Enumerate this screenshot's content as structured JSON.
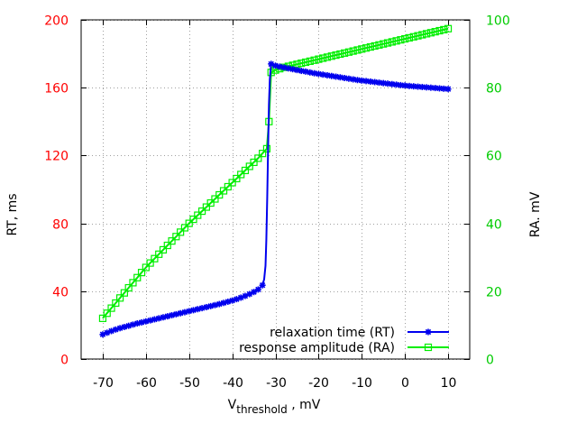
{
  "chart_data": {
    "type": "line",
    "xlabel_main": "V",
    "xlabel_sub": "threshold",
    "xlabel_tail": " , mV",
    "ylabel_left": "RT, ms",
    "ylabel_right": "RA. mV",
    "xlim": [
      -75,
      15
    ],
    "ylim_left": [
      0,
      200
    ],
    "ylim_right": [
      0,
      100
    ],
    "x_ticks": [
      -70,
      -60,
      -50,
      -40,
      -30,
      -20,
      -10,
      0,
      10
    ],
    "y_ticks_left": [
      0,
      40,
      80,
      120,
      160,
      200
    ],
    "y_ticks_right": [
      0,
      20,
      40,
      60,
      80,
      100
    ],
    "grid": true,
    "legend_position": "bottom-right",
    "colors": {
      "left_axis": "#ff0000",
      "right_axis": "#00cc00",
      "rt_line": "#0000ee",
      "ra_line": "#00ee00"
    },
    "series": [
      {
        "name": "relaxation time (RT)",
        "axis": "left",
        "marker": "star",
        "points": [
          [
            -70,
            14.5
          ],
          [
            -69,
            15.5
          ],
          [
            -68,
            16.5
          ],
          [
            -67,
            17.4
          ],
          [
            -66,
            18.2
          ],
          [
            -65,
            18.9
          ],
          [
            -64,
            19.6
          ],
          [
            -63,
            20.3
          ],
          [
            -62,
            21
          ],
          [
            -61,
            21.6
          ],
          [
            -60,
            22.2
          ],
          [
            -59,
            22.8
          ],
          [
            -58,
            23.4
          ],
          [
            -57,
            24
          ],
          [
            -56,
            24.6
          ],
          [
            -55,
            25.2
          ],
          [
            -54,
            25.8
          ],
          [
            -53,
            26.4
          ],
          [
            -52,
            27
          ],
          [
            -51,
            27.6
          ],
          [
            -50,
            28.2
          ],
          [
            -49,
            28.8
          ],
          [
            -48,
            29.4
          ],
          [
            -47,
            30
          ],
          [
            -46,
            30.6
          ],
          [
            -45,
            31.2
          ],
          [
            -44,
            31.8
          ],
          [
            -43,
            32.4
          ],
          [
            -42,
            33.1
          ],
          [
            -41,
            33.8
          ],
          [
            -40,
            34.5
          ],
          [
            -39,
            35.3
          ],
          [
            -38,
            36.2
          ],
          [
            -37,
            37.2
          ],
          [
            -36,
            38.3
          ],
          [
            -35,
            39.5
          ],
          [
            -34,
            41
          ],
          [
            -33,
            43.5
          ],
          [
            -32.6,
            47
          ],
          [
            -32.3,
            55
          ],
          [
            -32.1,
            70
          ],
          [
            -31.9,
            95
          ],
          [
            -31.7,
            125
          ],
          [
            -31.5,
            150
          ],
          [
            -31.3,
            165
          ],
          [
            -31,
            174
          ],
          [
            -30,
            173
          ],
          [
            -29,
            172.4
          ],
          [
            -28,
            171.9
          ],
          [
            -27,
            171.4
          ],
          [
            -26,
            170.9
          ],
          [
            -25,
            170.4
          ],
          [
            -24,
            169.9
          ],
          [
            -23,
            169.5
          ],
          [
            -22,
            169
          ],
          [
            -21,
            168.5
          ],
          [
            -20,
            168.1
          ],
          [
            -19,
            167.7
          ],
          [
            -18,
            167.3
          ],
          [
            -17,
            166.9
          ],
          [
            -16,
            166.5
          ],
          [
            -15,
            166.1
          ],
          [
            -14,
            165.7
          ],
          [
            -13,
            165.3
          ],
          [
            -12,
            164.9
          ],
          [
            -11,
            164.5
          ],
          [
            -10,
            164.2
          ],
          [
            -9,
            163.9
          ],
          [
            -8,
            163.6
          ],
          [
            -7,
            163.3
          ],
          [
            -6,
            163
          ],
          [
            -5,
            162.7
          ],
          [
            -4,
            162.4
          ],
          [
            -3,
            162.1
          ],
          [
            -2,
            161.8
          ],
          [
            -1,
            161.5
          ],
          [
            0,
            161.3
          ],
          [
            1,
            161
          ],
          [
            2,
            160.8
          ],
          [
            3,
            160.6
          ],
          [
            4,
            160.4
          ],
          [
            5,
            160.2
          ],
          [
            6,
            160
          ],
          [
            7,
            159.8
          ],
          [
            8,
            159.6
          ],
          [
            9,
            159.4
          ],
          [
            10,
            159.2
          ]
        ]
      },
      {
        "name": "response amplitude (RA)",
        "axis": "right",
        "marker": "open-square",
        "points": [
          [
            -70,
            12
          ],
          [
            -69,
            13.5
          ],
          [
            -68,
            15
          ],
          [
            -67,
            16.5
          ],
          [
            -66,
            18
          ],
          [
            -65,
            19.5
          ],
          [
            -64,
            21
          ],
          [
            -63,
            22.5
          ],
          [
            -62,
            24
          ],
          [
            -61,
            25.5
          ],
          [
            -60,
            27
          ],
          [
            -59,
            28.3
          ],
          [
            -58,
            29.6
          ],
          [
            -57,
            30.9
          ],
          [
            -56,
            32.2
          ],
          [
            -55,
            33.5
          ],
          [
            -54,
            34.8
          ],
          [
            -53,
            36.1
          ],
          [
            -52,
            37.4
          ],
          [
            -51,
            38.7
          ],
          [
            -50,
            40
          ],
          [
            -49,
            41.2
          ],
          [
            -48,
            42.4
          ],
          [
            -47,
            43.6
          ],
          [
            -46,
            44.8
          ],
          [
            -45,
            46
          ],
          [
            -44,
            47.2
          ],
          [
            -43,
            48.4
          ],
          [
            -42,
            49.6
          ],
          [
            -41,
            50.8
          ],
          [
            -40,
            52
          ],
          [
            -39,
            53.2
          ],
          [
            -38,
            54.4
          ],
          [
            -37,
            55.6
          ],
          [
            -36,
            56.8
          ],
          [
            -35,
            58
          ],
          [
            -34,
            59.2
          ],
          [
            -33,
            60.6
          ],
          [
            -32,
            62
          ],
          [
            -31.5,
            70
          ],
          [
            -31,
            84.5
          ],
          [
            -30,
            85.2
          ],
          [
            -29,
            85.6
          ],
          [
            -28,
            86
          ],
          [
            -27,
            86.3
          ],
          [
            -26,
            86.6
          ],
          [
            -25,
            86.9
          ],
          [
            -24,
            87.2
          ],
          [
            -23,
            87.5
          ],
          [
            -22,
            87.8
          ],
          [
            -21,
            88.1
          ],
          [
            -20,
            88.4
          ],
          [
            -19,
            88.7
          ],
          [
            -18,
            89
          ],
          [
            -17,
            89.3
          ],
          [
            -16,
            89.6
          ],
          [
            -15,
            89.9
          ],
          [
            -14,
            90.2
          ],
          [
            -13,
            90.5
          ],
          [
            -12,
            90.8
          ],
          [
            -11,
            91.1
          ],
          [
            -10,
            91.4
          ],
          [
            -9,
            91.7
          ],
          [
            -8,
            92
          ],
          [
            -7,
            92.3
          ],
          [
            -6,
            92.6
          ],
          [
            -5,
            92.9
          ],
          [
            -4,
            93.2
          ],
          [
            -3,
            93.5
          ],
          [
            -2,
            93.8
          ],
          [
            -1,
            94.1
          ],
          [
            0,
            94.4
          ],
          [
            1,
            94.7
          ],
          [
            2,
            95
          ],
          [
            3,
            95.3
          ],
          [
            4,
            95.6
          ],
          [
            5,
            95.9
          ],
          [
            6,
            96.2
          ],
          [
            7,
            96.5
          ],
          [
            8,
            96.8
          ],
          [
            9,
            97.1
          ],
          [
            10,
            97.4
          ]
        ]
      }
    ]
  }
}
